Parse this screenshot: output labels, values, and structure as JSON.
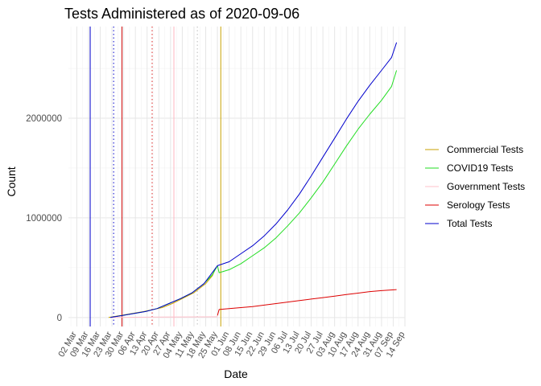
{
  "chart_data": {
    "type": "line",
    "title": "Tests Administered as of 2020-09-06",
    "xlabel": "Date",
    "ylabel": "Count",
    "xlim": [
      "2020-02-26",
      "2020-09-14"
    ],
    "ylim": [
      -90000,
      2920000
    ],
    "y_ticks": [
      0,
      1000000,
      2000000
    ],
    "y_tick_labels": [
      "0",
      "1000000",
      "2000000"
    ],
    "x_ticks": [
      "2020-03-02",
      "2020-03-09",
      "2020-03-16",
      "2020-03-23",
      "2020-03-30",
      "2020-04-06",
      "2020-04-13",
      "2020-04-20",
      "2020-04-27",
      "2020-05-04",
      "2020-05-11",
      "2020-05-18",
      "2020-05-25",
      "2020-06-01",
      "2020-06-08",
      "2020-06-15",
      "2020-06-22",
      "2020-06-29",
      "2020-07-06",
      "2020-07-13",
      "2020-07-20",
      "2020-07-27",
      "2020-08-03",
      "2020-08-10",
      "2020-08-17",
      "2020-08-24",
      "2020-08-31",
      "2020-09-07",
      "2020-09-14"
    ],
    "x_tick_labels": [
      "02 Mar",
      "09 Mar",
      "16 Mar",
      "23 Mar",
      "30 Mar",
      "06 Apr",
      "13 Apr",
      "20 Apr",
      "27 Apr",
      "04 May",
      "11 May",
      "18 May",
      "25 May",
      "01 Jun",
      "08 Jun",
      "15 Jun",
      "22 Jun",
      "29 Jun",
      "06 Jul",
      "13 Jul",
      "20 Jul",
      "27 Jul",
      "03 Aug",
      "10 Aug",
      "17 Aug",
      "24 Aug",
      "31 Aug",
      "07 Sep",
      "14 Sep"
    ],
    "grid": true,
    "legend_position": "right",
    "series": [
      {
        "name": "Commercial Tests",
        "color": "#c8a200",
        "points": [
          [
            "2020-03-21",
            0
          ],
          [
            "2020-03-28",
            20000
          ],
          [
            "2020-04-04",
            40000
          ],
          [
            "2020-04-11",
            60000
          ],
          [
            "2020-04-18",
            85000
          ],
          [
            "2020-04-22",
            100000
          ],
          [
            "2020-04-28",
            140000
          ],
          [
            "2020-05-04",
            190000
          ],
          [
            "2020-05-11",
            250000
          ],
          [
            "2020-05-18",
            340000
          ],
          [
            "2020-05-22",
            420000
          ],
          [
            "2020-05-24",
            500000
          ]
        ]
      },
      {
        "name": "COVID19 Tests",
        "color": "#22dd22",
        "points": [
          [
            "2020-03-22",
            0
          ],
          [
            "2020-03-29",
            20000
          ],
          [
            "2020-04-05",
            40000
          ],
          [
            "2020-04-12",
            60000
          ],
          [
            "2020-04-19",
            90000
          ],
          [
            "2020-04-26",
            140000
          ],
          [
            "2020-05-03",
            190000
          ],
          [
            "2020-05-10",
            250000
          ],
          [
            "2020-05-17",
            340000
          ],
          [
            "2020-05-22",
            430000
          ],
          [
            "2020-05-25",
            520000
          ],
          [
            "2020-05-26",
            450000
          ],
          [
            "2020-06-01",
            480000
          ],
          [
            "2020-06-08",
            540000
          ],
          [
            "2020-06-15",
            620000
          ],
          [
            "2020-06-22",
            700000
          ],
          [
            "2020-06-29",
            800000
          ],
          [
            "2020-07-06",
            920000
          ],
          [
            "2020-07-13",
            1050000
          ],
          [
            "2020-07-20",
            1200000
          ],
          [
            "2020-07-27",
            1360000
          ],
          [
            "2020-08-03",
            1540000
          ],
          [
            "2020-08-10",
            1720000
          ],
          [
            "2020-08-17",
            1890000
          ],
          [
            "2020-08-24",
            2040000
          ],
          [
            "2020-08-31",
            2180000
          ],
          [
            "2020-09-06",
            2320000
          ],
          [
            "2020-09-09",
            2480000
          ]
        ]
      },
      {
        "name": "Government Tests",
        "color": "#ffc0cb",
        "points": [
          [
            "2020-03-22",
            0
          ],
          [
            "2020-04-20",
            5000
          ],
          [
            "2020-05-25",
            8000
          ]
        ]
      },
      {
        "name": "Serology Tests",
        "color": "#dd0000",
        "points": [
          [
            "2020-05-25",
            20000
          ],
          [
            "2020-05-26",
            80000
          ],
          [
            "2020-06-01",
            90000
          ],
          [
            "2020-06-08",
            100000
          ],
          [
            "2020-06-15",
            110000
          ],
          [
            "2020-06-22",
            125000
          ],
          [
            "2020-06-29",
            140000
          ],
          [
            "2020-07-06",
            155000
          ],
          [
            "2020-07-13",
            170000
          ],
          [
            "2020-07-20",
            185000
          ],
          [
            "2020-07-27",
            200000
          ],
          [
            "2020-08-03",
            215000
          ],
          [
            "2020-08-10",
            230000
          ],
          [
            "2020-08-17",
            245000
          ],
          [
            "2020-08-24",
            260000
          ],
          [
            "2020-08-31",
            270000
          ],
          [
            "2020-09-09",
            280000
          ]
        ]
      },
      {
        "name": "Total Tests",
        "color": "#0000cc",
        "points": [
          [
            "2020-03-22",
            0
          ],
          [
            "2020-03-29",
            20000
          ],
          [
            "2020-04-05",
            40000
          ],
          [
            "2020-04-12",
            60000
          ],
          [
            "2020-04-19",
            90000
          ],
          [
            "2020-04-26",
            140000
          ],
          [
            "2020-05-03",
            190000
          ],
          [
            "2020-05-10",
            250000
          ],
          [
            "2020-05-17",
            340000
          ],
          [
            "2020-05-25",
            520000
          ],
          [
            "2020-06-01",
            560000
          ],
          [
            "2020-06-08",
            640000
          ],
          [
            "2020-06-15",
            720000
          ],
          [
            "2020-06-22",
            820000
          ],
          [
            "2020-06-29",
            940000
          ],
          [
            "2020-07-06",
            1080000
          ],
          [
            "2020-07-13",
            1240000
          ],
          [
            "2020-07-20",
            1420000
          ],
          [
            "2020-07-27",
            1610000
          ],
          [
            "2020-08-03",
            1800000
          ],
          [
            "2020-08-10",
            1990000
          ],
          [
            "2020-08-17",
            2170000
          ],
          [
            "2020-08-24",
            2330000
          ],
          [
            "2020-08-31",
            2480000
          ],
          [
            "2020-09-06",
            2610000
          ],
          [
            "2020-09-09",
            2760000
          ]
        ]
      }
    ],
    "reference_lines": [
      {
        "date": "2020-03-10",
        "color": "#0000cc",
        "style": "solid"
      },
      {
        "date": "2020-03-24",
        "color": "#0000cc",
        "style": "dotted"
      },
      {
        "date": "2020-03-29",
        "color": "#cc0000",
        "style": "solid"
      },
      {
        "date": "2020-04-16",
        "color": "#dd2222",
        "style": "dotted"
      },
      {
        "date": "2020-04-29",
        "color": "#ffb6c1",
        "style": "solid"
      },
      {
        "date": "2020-05-13",
        "color": "#bbbbbb",
        "style": "dotted"
      },
      {
        "date": "2020-05-27",
        "color": "#c8a200",
        "style": "solid"
      }
    ]
  }
}
